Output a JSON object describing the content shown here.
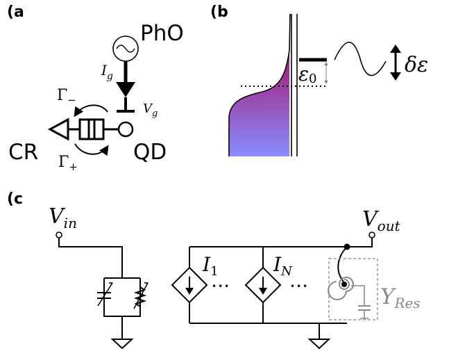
{
  "panels": {
    "a": {
      "label": "(a",
      "source_label": "PhO",
      "current": {
        "sym": "I",
        "sub": "g"
      },
      "gate": {
        "sym": "V",
        "sub": "g"
      },
      "rate_minus": {
        "sym": "Γ",
        "sub": "−"
      },
      "rate_plus": {
        "sym": "Γ",
        "sub": "+"
      },
      "reservoir_label": "CR",
      "dot_label": "QD"
    },
    "b": {
      "label": "(b",
      "level": {
        "sym": "ε",
        "sub": "0"
      },
      "modulation": "δε"
    },
    "c": {
      "label": "(c",
      "v_in": {
        "sym": "V",
        "sub": "in"
      },
      "v_out": {
        "sym": "V",
        "sub": "out"
      },
      "source_1": {
        "sym": "I",
        "sub": "1"
      },
      "source_n": {
        "sym": "I",
        "sub": "N"
      },
      "dots": "•••",
      "resonator": {
        "sym": "Y",
        "sub": "Res"
      }
    }
  },
  "colors": {
    "line": "#000000",
    "fermi_top": "#a3176e",
    "fermi_bottom": "#8a8cff",
    "resonator": "#8a8a8a"
  }
}
